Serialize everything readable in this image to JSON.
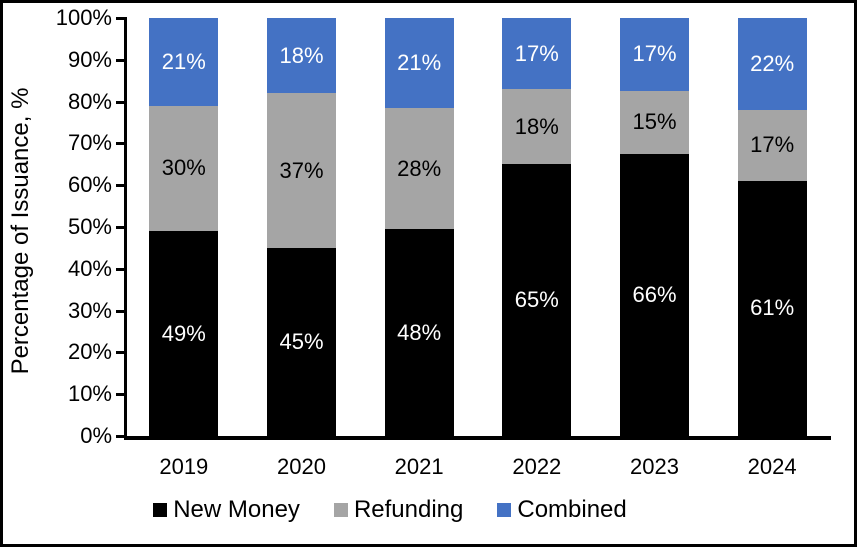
{
  "frame": {
    "border_color": "#000000",
    "background_color": "#ffffff"
  },
  "chart_data": {
    "type": "bar",
    "stacked": true,
    "orientation": "vertical",
    "title": "",
    "xlabel": "",
    "ylabel": "Percentage of Issuance, %",
    "ylim": [
      0,
      100
    ],
    "grid": false,
    "legend_position": "bottom",
    "categories": [
      "2019",
      "2020",
      "2021",
      "2022",
      "2023",
      "2024"
    ],
    "series": [
      {
        "name": "New Money",
        "color": "#000000",
        "label_color": "#ffffff",
        "values": [
          49,
          45,
          48,
          65,
          66,
          61
        ],
        "labels": [
          "49%",
          "45%",
          "48%",
          "65%",
          "66%",
          "61%"
        ]
      },
      {
        "name": "Refunding",
        "color": "#a5a5a5",
        "label_color": "#000000",
        "values": [
          30,
          37,
          28,
          18,
          15,
          17
        ],
        "labels": [
          "30%",
          "37%",
          "28%",
          "18%",
          "15%",
          "17%"
        ]
      },
      {
        "name": "Combined",
        "color": "#4472c4",
        "label_color": "#ffffff",
        "values": [
          21,
          18,
          21,
          17,
          17,
          22
        ],
        "labels": [
          "21%",
          "18%",
          "21%",
          "17%",
          "17%",
          "22%"
        ]
      }
    ],
    "y_ticks": [
      {
        "value": 0,
        "label": "0%"
      },
      {
        "value": 10,
        "label": "10%"
      },
      {
        "value": 20,
        "label": "20%"
      },
      {
        "value": 30,
        "label": "30%"
      },
      {
        "value": 40,
        "label": "40%"
      },
      {
        "value": 50,
        "label": "50%"
      },
      {
        "value": 60,
        "label": "60%"
      },
      {
        "value": 70,
        "label": "70%"
      },
      {
        "value": 80,
        "label": "80%"
      },
      {
        "value": 90,
        "label": "90%"
      },
      {
        "value": 100,
        "label": "100%"
      }
    ]
  }
}
